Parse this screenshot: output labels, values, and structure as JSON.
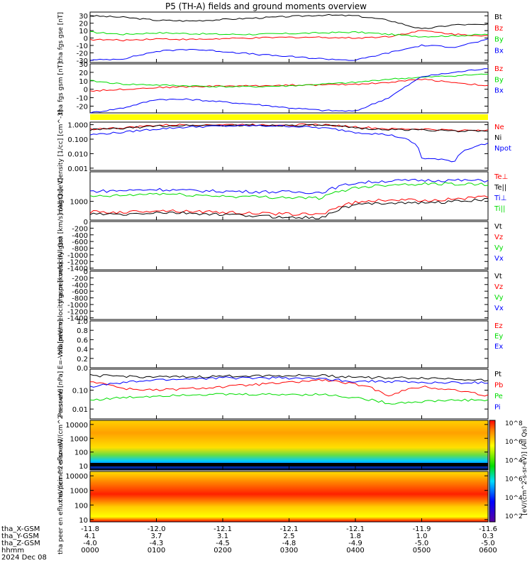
{
  "title": "P5 (TH-A) fields and ground moments overview",
  "colors": {
    "black": "#000000",
    "red": "#ff0000",
    "green": "#00dd00",
    "blue": "#0000ff",
    "yellow": "#ffff00"
  },
  "xaxis": {
    "ticks": [
      "0000",
      "0100",
      "0200",
      "0300",
      "0400",
      "0500",
      "0600"
    ],
    "rows": [
      {
        "label": "tha_X-GSM",
        "values": [
          "-11.8",
          "-12.0",
          "-12.1",
          "-12.1",
          "-12.1",
          "-11.9",
          "-11.6"
        ]
      },
      {
        "label": "tha_Y-GSM",
        "values": [
          "4.1",
          "3.7",
          "3.1",
          "2.5",
          "1.8",
          "1.0",
          "0.3"
        ]
      },
      {
        "label": "tha_Z-GSM",
        "values": [
          "-4.0",
          "-4.3",
          "-4.5",
          "-4.8",
          "-4.9",
          "-5.0",
          "-5.0"
        ]
      },
      {
        "label": "hhmm",
        "values": [
          "0000",
          "0100",
          "0200",
          "0300",
          "0400",
          "0500",
          "0600"
        ]
      }
    ],
    "date": "2024 Dec 08"
  },
  "colorbar": {
    "label": "[eV/(cm^2-s-sr-eV)] (All Qs)",
    "ticks": [
      "10^2",
      "10^4",
      "10^6",
      "10^4",
      "10^6",
      "10^8"
    ]
  },
  "chart_data": [
    {
      "type": "line",
      "panel": "fgs_gse",
      "ylabel": "tha fgs gse [nT]",
      "ylim": [
        -33,
        35
      ],
      "yticks": [
        "30",
        "20",
        "10",
        "0",
        "-10",
        "-20",
        "-30"
      ],
      "x_hours": [
        0,
        0.5,
        1,
        1.5,
        2,
        2.5,
        3,
        3.5,
        4,
        4.5,
        5,
        5.5,
        6
      ],
      "series": [
        {
          "name": "Bt",
          "color": "black",
          "values": [
            30,
            28,
            24,
            23,
            25,
            27,
            29,
            31,
            30,
            24,
            12,
            18,
            18
          ]
        },
        {
          "name": "Bz",
          "color": "red",
          "values": [
            -2,
            -3,
            -1,
            -2,
            -1,
            0,
            1,
            1,
            0,
            2,
            10,
            5,
            3
          ]
        },
        {
          "name": "By",
          "color": "green",
          "values": [
            8,
            5,
            7,
            6,
            5,
            5,
            6,
            7,
            8,
            5,
            2,
            3,
            5
          ]
        },
        {
          "name": "Bx",
          "color": "blue",
          "values": [
            -30,
            -28,
            -18,
            -15,
            -18,
            -22,
            -25,
            -28,
            -30,
            -20,
            -10,
            -12,
            -2
          ]
        }
      ]
    },
    {
      "type": "line",
      "panel": "fgs_gsm",
      "ylabel": "tha fgs gsm [nT]",
      "ylim": [
        -28,
        30
      ],
      "yticks": [
        "30",
        "20",
        "10",
        "0",
        "-10",
        "-20"
      ],
      "x_hours": [
        0,
        0.5,
        1,
        1.5,
        2,
        2.5,
        3,
        3.5,
        4,
        4.5,
        5,
        5.5,
        6
      ],
      "series": [
        {
          "name": "Bz",
          "color": "red",
          "values": [
            -2,
            0,
            2,
            3,
            4,
            4,
            5,
            5,
            6,
            8,
            12,
            8,
            4
          ]
        },
        {
          "name": "By",
          "color": "green",
          "values": [
            10,
            6,
            5,
            4,
            3,
            3,
            4,
            6,
            8,
            12,
            14,
            16,
            18
          ]
        },
        {
          "name": "Bx",
          "color": "blue",
          "values": [
            -28,
            -22,
            -12,
            -12,
            -15,
            -18,
            -22,
            -25,
            -26,
            -10,
            15,
            20,
            25
          ]
        }
      ]
    },
    {
      "type": "line",
      "panel": "density",
      "ylabel": "Density [1/cc] [cm^-3]",
      "scale": "log",
      "ylim": [
        0.0007,
        1.5
      ],
      "yticks": [
        "1.000",
        "0.100",
        "0.010",
        "0.001"
      ],
      "x_hours": [
        0,
        0.5,
        1,
        1.5,
        2,
        2.5,
        3,
        3.5,
        4,
        4.5,
        5,
        5.5,
        6
      ],
      "series": [
        {
          "name": "Ne",
          "color": "red",
          "values": [
            0.5,
            0.6,
            0.9,
            1.0,
            1.0,
            1.0,
            1.0,
            1.0,
            0.7,
            0.5,
            0.5,
            0.4,
            0.45
          ]
        },
        {
          "name": "Ni",
          "color": "black",
          "values": [
            0.45,
            0.55,
            0.8,
            0.9,
            0.9,
            0.9,
            0.9,
            0.9,
            0.6,
            0.45,
            0.45,
            0.35,
            0.4
          ]
        },
        {
          "name": "Npot",
          "color": "blue",
          "values": [
            0.2,
            0.3,
            0.5,
            0.7,
            0.8,
            0.85,
            0.8,
            0.6,
            0.3,
            0.2,
            0.005,
            0.003,
            0.05
          ]
        }
      ]
    },
    {
      "type": "line",
      "panel": "temperature",
      "ylabel": "magt3 [eV]",
      "scale": "log",
      "ylim": [
        150,
        20000
      ],
      "yticks": [
        "1000"
      ],
      "x_hours": [
        0,
        0.5,
        1,
        1.5,
        2,
        2.5,
        3,
        3.5,
        4,
        4.5,
        5,
        5.5,
        6
      ],
      "series": [
        {
          "name": "Te⊥",
          "color": "red",
          "values": [
            350,
            330,
            400,
            370,
            330,
            300,
            280,
            270,
            900,
            1200,
            1100,
            1300,
            1600
          ]
        },
        {
          "name": "Te||",
          "color": "black",
          "values": [
            280,
            260,
            320,
            300,
            260,
            230,
            200,
            190,
            700,
            900,
            850,
            1000,
            1200
          ]
        },
        {
          "name": "Ti⊥",
          "color": "blue",
          "values": [
            2800,
            3000,
            3400,
            3000,
            2800,
            2700,
            2600,
            2500,
            6500,
            8000,
            8500,
            8500,
            8200
          ]
        },
        {
          "name": "Ti||",
          "color": "green",
          "values": [
            1600,
            1800,
            2200,
            1900,
            1700,
            1600,
            1500,
            1400,
            4000,
            5500,
            6000,
            6000,
            5500
          ]
        }
      ]
    },
    {
      "type": "line",
      "panel": "peir_velocity",
      "ylabel": "tha peir velocity gsm [km/s] (All Qs)",
      "ylim": [
        -1450,
        0
      ],
      "yticks": [
        "0",
        "-200",
        "-400",
        "-600",
        "-800",
        "-1000",
        "-1200",
        "-1400"
      ],
      "legend": [
        "Vt",
        "Vz",
        "Vy",
        "Vx"
      ],
      "series": []
    },
    {
      "type": "line",
      "panel": "peer_velocity",
      "ylabel": "tha peer velocity gsm [km/s] (All Qs)",
      "ylim": [
        -1450,
        0
      ],
      "yticks": [
        "0",
        "-200",
        "-400",
        "-600",
        "-800",
        "-1000",
        "-1200",
        "-1400"
      ],
      "legend": [
        "Vt",
        "Vz",
        "Vy",
        "Vx"
      ],
      "series": []
    },
    {
      "type": "line",
      "panel": "efield",
      "ylabel": "E=-VxB [mV/m]",
      "ylim": [
        0,
        1.0
      ],
      "yticks": [
        "1.0",
        "0.8",
        "0.6",
        "0.4",
        "0.2",
        "0.0"
      ],
      "legend": [
        "Ez",
        "Ey",
        "Ex"
      ],
      "series": []
    },
    {
      "type": "line",
      "panel": "pressure",
      "ylabel": "Pressure [nPa]",
      "scale": "log",
      "ylim": [
        0.003,
        1.3
      ],
      "yticks": [
        "0.10",
        "0.01"
      ],
      "x_hours": [
        0,
        0.5,
        1,
        1.5,
        2,
        2.5,
        3,
        3.5,
        4,
        4.5,
        5,
        5.5,
        6
      ],
      "series": [
        {
          "name": "Pt",
          "color": "black",
          "values": [
            0.6,
            0.55,
            0.5,
            0.5,
            0.55,
            0.6,
            0.6,
            0.6,
            0.5,
            0.45,
            0.45,
            0.4,
            0.35
          ]
        },
        {
          "name": "Pb",
          "color": "red",
          "values": [
            0.3,
            0.12,
            0.1,
            0.12,
            0.15,
            0.2,
            0.25,
            0.35,
            0.2,
            0.05,
            0.15,
            0.1,
            0.05
          ]
        },
        {
          "name": "Pe",
          "color": "green",
          "values": [
            0.03,
            0.04,
            0.05,
            0.06,
            0.06,
            0.06,
            0.06,
            0.06,
            0.04,
            0.02,
            0.025,
            0.03,
            0.03
          ]
        },
        {
          "name": "Pi",
          "color": "blue",
          "values": [
            0.15,
            0.25,
            0.35,
            0.4,
            0.45,
            0.45,
            0.45,
            0.4,
            0.3,
            0.3,
            0.25,
            0.25,
            0.25
          ]
        }
      ]
    },
    {
      "type": "heatmap",
      "panel": "peir_eflux",
      "ylabel": "tha peir en eflux eV/(cm^2-s-sr-eV)",
      "scale": "log",
      "ylim": [
        5,
        20000
      ],
      "yticks": [
        "10000",
        "1000",
        "100",
        "10"
      ]
    },
    {
      "type": "heatmap",
      "panel": "peer_eflux",
      "ylabel": "tha peer en eflux eV/(cm^2-s-sr-eV)",
      "scale": "log",
      "ylim": [
        7,
        20000
      ],
      "yticks": [
        "10000",
        "1000",
        "100",
        "10"
      ]
    }
  ]
}
